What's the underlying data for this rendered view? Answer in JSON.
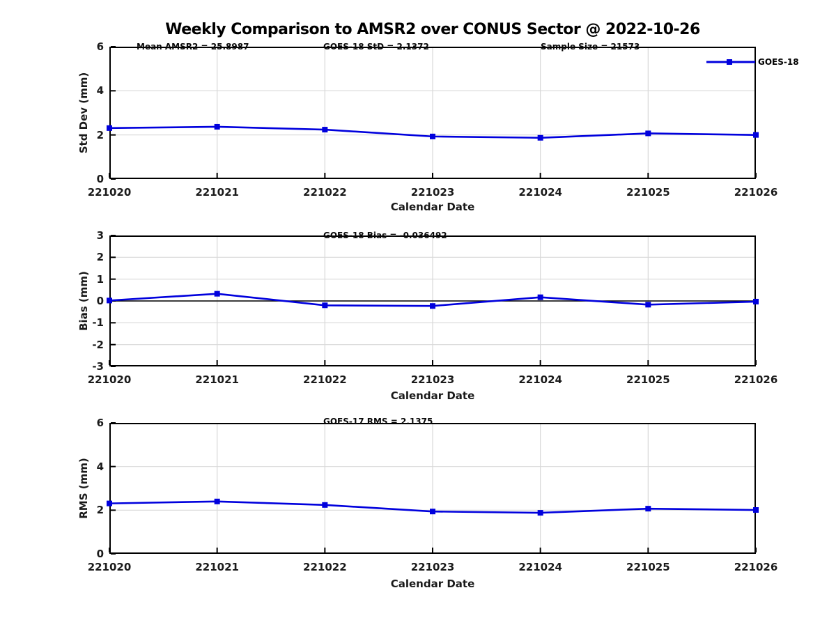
{
  "title": "Weekly Comparison to AMSR2 over CONUS Sector @ 2022-10-26",
  "colors": {
    "line": "#0000dd",
    "grid": "#d8d8d8",
    "axis": "#000000",
    "text": "#1a1a1a"
  },
  "legend": {
    "label": "GOES-18"
  },
  "chart_data": [
    {
      "type": "line",
      "title": "",
      "ylabel": "Std Dev (mm)",
      "xlabel": "Calendar Date",
      "categories": [
        "221020",
        "221021",
        "221022",
        "221023",
        "221024",
        "221025",
        "221026"
      ],
      "series": [
        {
          "name": "GOES-18",
          "values": [
            2.31,
            2.37,
            2.24,
            1.93,
            1.87,
            2.07,
            2.0
          ]
        }
      ],
      "ylim": [
        0,
        6
      ],
      "yticks": [
        0,
        2,
        4,
        6
      ],
      "grid": true,
      "legend_position": "top-right",
      "annotations": [
        "Mean AMSR2 = 25.8987",
        "GOES-18 StD = 2.1372",
        "Sample Size = 21573"
      ]
    },
    {
      "type": "line",
      "title": "",
      "ylabel": "Bias (mm)",
      "xlabel": "Calendar Date",
      "categories": [
        "221020",
        "221021",
        "221022",
        "221023",
        "221024",
        "221025",
        "221026"
      ],
      "series": [
        {
          "name": "GOES-18",
          "values": [
            0.02,
            0.33,
            -0.2,
            -0.23,
            0.17,
            -0.17,
            -0.03
          ]
        }
      ],
      "ylim": [
        -3,
        3
      ],
      "yticks": [
        -3,
        -2,
        -1,
        0,
        1,
        2,
        3
      ],
      "grid": true,
      "zero_line": true,
      "annotations": [
        "GOES-18 Bias  = -0.036492"
      ]
    },
    {
      "type": "line",
      "title": "",
      "ylabel": "RMS (mm)",
      "xlabel": "Calendar Date",
      "categories": [
        "221020",
        "221021",
        "221022",
        "221023",
        "221024",
        "221025",
        "221026"
      ],
      "series": [
        {
          "name": "GOES-17",
          "values": [
            2.31,
            2.4,
            2.24,
            1.94,
            1.88,
            2.07,
            2.01
          ]
        }
      ],
      "ylim": [
        0,
        6
      ],
      "yticks": [
        0,
        2,
        4,
        6
      ],
      "grid": true,
      "annotations": [
        "GOES-17 RMS = 2.1375"
      ]
    }
  ]
}
